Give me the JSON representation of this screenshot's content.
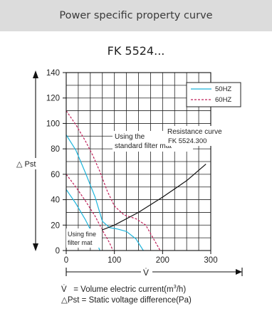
{
  "header": {
    "title": "Power specific property curve"
  },
  "model_title": "FK 5524...",
  "footnotes": {
    "v_symbol": "V̇",
    "v_text_pre": "= Volume electric current(m",
    "v_sup": "3",
    "v_text_post": "/h)",
    "p_text": "△Pst = Static voltage difference(Pa)"
  },
  "colors": {
    "hz50": "#1fb5dc",
    "hz60": "#c0205a",
    "resistance": "#111111",
    "grid": "#222222"
  },
  "chart_data": {
    "type": "line",
    "xlim": [
      0,
      300
    ],
    "ylim": [
      0,
      140
    ],
    "x_ticks": [
      "0",
      "100",
      "200",
      "300"
    ],
    "y_ticks": [
      "0",
      "20",
      "40",
      "60",
      "80",
      "100",
      "120",
      "140"
    ],
    "xlabel": "V̇",
    "ylabel": "△ Pst",
    "grid": true,
    "legend_position": "top-right",
    "legend": [
      "50HZ",
      "60HZ"
    ],
    "annotations": {
      "standard_line1": "Using the",
      "standard_line2": "standard filter mat",
      "resistance_line1": "Resistance curve",
      "resistance_line2": "FK 5524.300",
      "fine_line1": "Using fine",
      "fine_line2": "filter mat"
    },
    "series": [
      {
        "name": "50HZ",
        "points": [
          [
            0,
            91
          ],
          [
            20,
            79
          ],
          [
            40,
            61
          ],
          [
            60,
            42
          ],
          [
            75,
            23
          ],
          [
            90,
            18
          ],
          [
            105,
            17
          ],
          [
            125,
            15
          ],
          [
            145,
            9
          ],
          [
            160,
            0
          ]
        ]
      },
      {
        "name": "50HZ",
        "points": [
          [
            0,
            48
          ],
          [
            20,
            37
          ],
          [
            40,
            24
          ],
          [
            55,
            13
          ],
          [
            70,
            0
          ]
        ]
      },
      {
        "name": "60HZ",
        "points": [
          [
            0,
            110
          ],
          [
            20,
            99
          ],
          [
            40,
            86
          ],
          [
            55,
            75
          ],
          [
            70,
            62
          ],
          [
            85,
            47
          ],
          [
            100,
            35
          ],
          [
            120,
            28
          ],
          [
            145,
            25
          ],
          [
            165,
            20
          ],
          [
            180,
            10
          ],
          [
            195,
            0
          ]
        ]
      },
      {
        "name": "60HZ",
        "points": [
          [
            0,
            60
          ],
          [
            20,
            50
          ],
          [
            40,
            39
          ],
          [
            60,
            27
          ],
          [
            75,
            16
          ],
          [
            90,
            6
          ],
          [
            97,
            0
          ]
        ]
      },
      {
        "name": "Resistance curve",
        "points": [
          [
            30,
            10
          ],
          [
            60,
            14
          ],
          [
            100,
            20
          ],
          [
            150,
            30
          ],
          [
            200,
            42
          ],
          [
            250,
            55
          ],
          [
            290,
            68
          ]
        ]
      }
    ]
  }
}
